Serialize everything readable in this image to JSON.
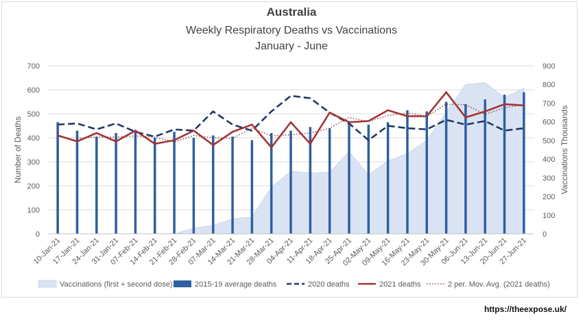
{
  "chart_data": {
    "type": "bar",
    "title": "Australia",
    "subtitle": "Weekly Respiratory Deaths vs Vaccinations",
    "subtitle2": "January - June",
    "ylabel": "Number of Deaths",
    "y2label": "Vaccinations Thousands",
    "ylim": [
      0,
      700
    ],
    "y2lim": [
      0,
      900
    ],
    "yticks": [
      "0",
      "100",
      "200",
      "300",
      "400",
      "500",
      "600",
      "700"
    ],
    "y2ticks": [
      "0",
      "100",
      "200",
      "300",
      "400",
      "500",
      "600",
      "700",
      "800",
      "900"
    ],
    "grid": true,
    "legend_position": "bottom",
    "categories": [
      "10-Jan-21",
      "17-Jan-21",
      "24-Jan-21",
      "31-Jan-21",
      "07-Feb-21",
      "14-Feb-21",
      "21-Feb-21",
      "28-Feb-21",
      "07-Mar-21",
      "14-Mar-21",
      "21-Mar-21",
      "28-Mar-21",
      "04-Apr-21",
      "11-Apr-21",
      "18-Apr-21",
      "25-Apr-21",
      "02-May-21",
      "09-May-21",
      "16-May-21",
      "23-May-21",
      "30-May-21",
      "06-Jun-21",
      "13-Jun-21",
      "20-Jun-21",
      "27-Jun-21"
    ],
    "series": [
      {
        "name": "Vaccinations (first + second dose)",
        "type": "area",
        "axis": "right",
        "color": "#dae3f3",
        "values": [
          0,
          0,
          0,
          0,
          0,
          0,
          0,
          30,
          45,
          80,
          90,
          250,
          335,
          325,
          330,
          440,
          315,
          390,
          430,
          500,
          650,
          800,
          810,
          730,
          780
        ]
      },
      {
        "name": "2015-19 average deaths",
        "type": "bar",
        "axis": "left",
        "color": "#2e5fa0",
        "values": [
          465,
          430,
          405,
          420,
          425,
          400,
          425,
          400,
          410,
          405,
          390,
          420,
          430,
          445,
          440,
          460,
          455,
          465,
          515,
          510,
          550,
          540,
          560,
          580,
          590
        ]
      },
      {
        "name": "2020 deaths",
        "type": "line",
        "axis": "left",
        "color": "#1f3864",
        "values": [
          455,
          460,
          435,
          460,
          425,
          405,
          435,
          430,
          510,
          455,
          430,
          510,
          575,
          565,
          505,
          460,
          390,
          450,
          440,
          435,
          475,
          455,
          470,
          430,
          440
        ]
      },
      {
        "name": "2021 deaths",
        "type": "line",
        "axis": "left",
        "color": "#a23334",
        "values": [
          410,
          385,
          420,
          385,
          430,
          375,
          390,
          430,
          370,
          425,
          455,
          360,
          465,
          375,
          505,
          465,
          470,
          515,
          490,
          490,
          590,
          485,
          510,
          540,
          535
        ]
      },
      {
        "name": "2 per. Mov. Avg. (2021 deaths)",
        "type": "dotted-line",
        "axis": "left",
        "color": "#7b2c2d",
        "values": [
          null,
          398,
          403,
          403,
          408,
          403,
          383,
          410,
          400,
          398,
          440,
          408,
          413,
          420,
          440,
          485,
          468,
          493,
          503,
          490,
          540,
          538,
          498,
          525,
          538
        ]
      }
    ]
  },
  "credit": "https://theexpose.uk/"
}
